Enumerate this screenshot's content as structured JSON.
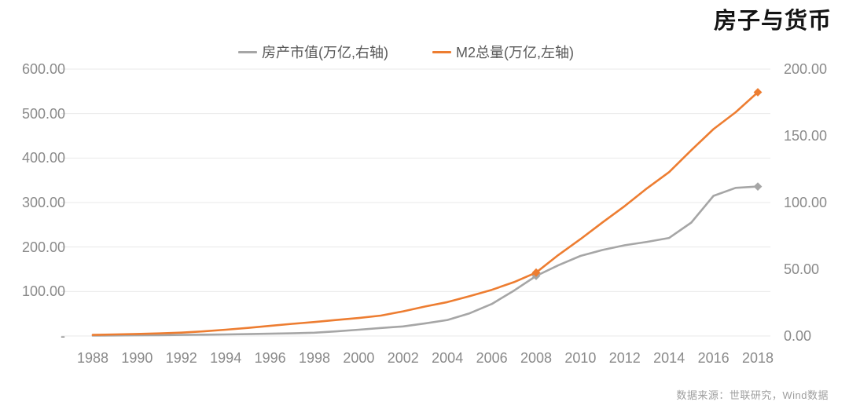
{
  "chart_data": {
    "type": "line",
    "title": "房子与货币",
    "source_note": "数据来源：世联研究，Wind数据",
    "grid": true,
    "legend_position": "top-center",
    "x": [
      1988,
      1989,
      1990,
      1991,
      1992,
      1993,
      1994,
      1995,
      1996,
      1997,
      1998,
      1999,
      2000,
      2001,
      2002,
      2003,
      2004,
      2005,
      2006,
      2007,
      2008,
      2009,
      2010,
      2011,
      2012,
      2013,
      2014,
      2015,
      2016,
      2017,
      2018
    ],
    "x_tick_labels": [
      "1988",
      "1990",
      "1992",
      "1994",
      "1996",
      "1998",
      "2000",
      "2002",
      "2004",
      "2006",
      "2008",
      "2010",
      "2012",
      "2014",
      "2016",
      "2018"
    ],
    "left_axis": {
      "min": 0,
      "max": 600,
      "tick_step": 100,
      "tick_labels": [
        "600.00",
        "500.00",
        "400.00",
        "300.00",
        "200.00",
        "100.00",
        "-"
      ]
    },
    "right_axis": {
      "min": 0,
      "max": 200,
      "tick_step": 50,
      "tick_labels": [
        "200.00",
        "150.00",
        "100.00",
        "50.00",
        "0.00"
      ]
    },
    "series": [
      {
        "name": "房产市值(万亿,右轴)",
        "axis": "right",
        "color": "#A6A6A6",
        "marker_years": [
          2008,
          2018
        ],
        "values": [
          0.3,
          0.4,
          0.5,
          0.6,
          0.8,
          1.0,
          1.2,
          1.4,
          1.7,
          2.0,
          2.5,
          3.5,
          4.7,
          6.0,
          7.2,
          9.5,
          12.0,
          17.0,
          24.0,
          34.0,
          45.0,
          53.0,
          60.0,
          64.5,
          68.0,
          70.5,
          73.5,
          85.0,
          105.0,
          111.0,
          112.0
        ]
      },
      {
        "name": "M2总量(万亿,左轴)",
        "axis": "left",
        "color": "#ED7D31",
        "marker_years": [
          2008,
          2018
        ],
        "values": [
          2.5,
          3.6,
          4.6,
          5.8,
          7.6,
          10.5,
          14.1,
          18.2,
          22.8,
          27.4,
          31.4,
          36.0,
          40.4,
          45.9,
          55.5,
          66.4,
          76.2,
          89.6,
          103.7,
          121.0,
          142.6,
          181.9,
          217.7,
          255.5,
          292.2,
          331.9,
          368.5,
          417.7,
          465.0,
          503.0,
          548.0
        ]
      }
    ]
  },
  "colors": {
    "background": "#FFFFFF",
    "series_gray": "#A6A6A6",
    "series_orange": "#ED7D31",
    "gridline": "#E9E9E9",
    "axis_text": "#8A8A8A",
    "legend_text": "#595959",
    "title_text": "#141414",
    "source_text": "#9E9E9E"
  }
}
